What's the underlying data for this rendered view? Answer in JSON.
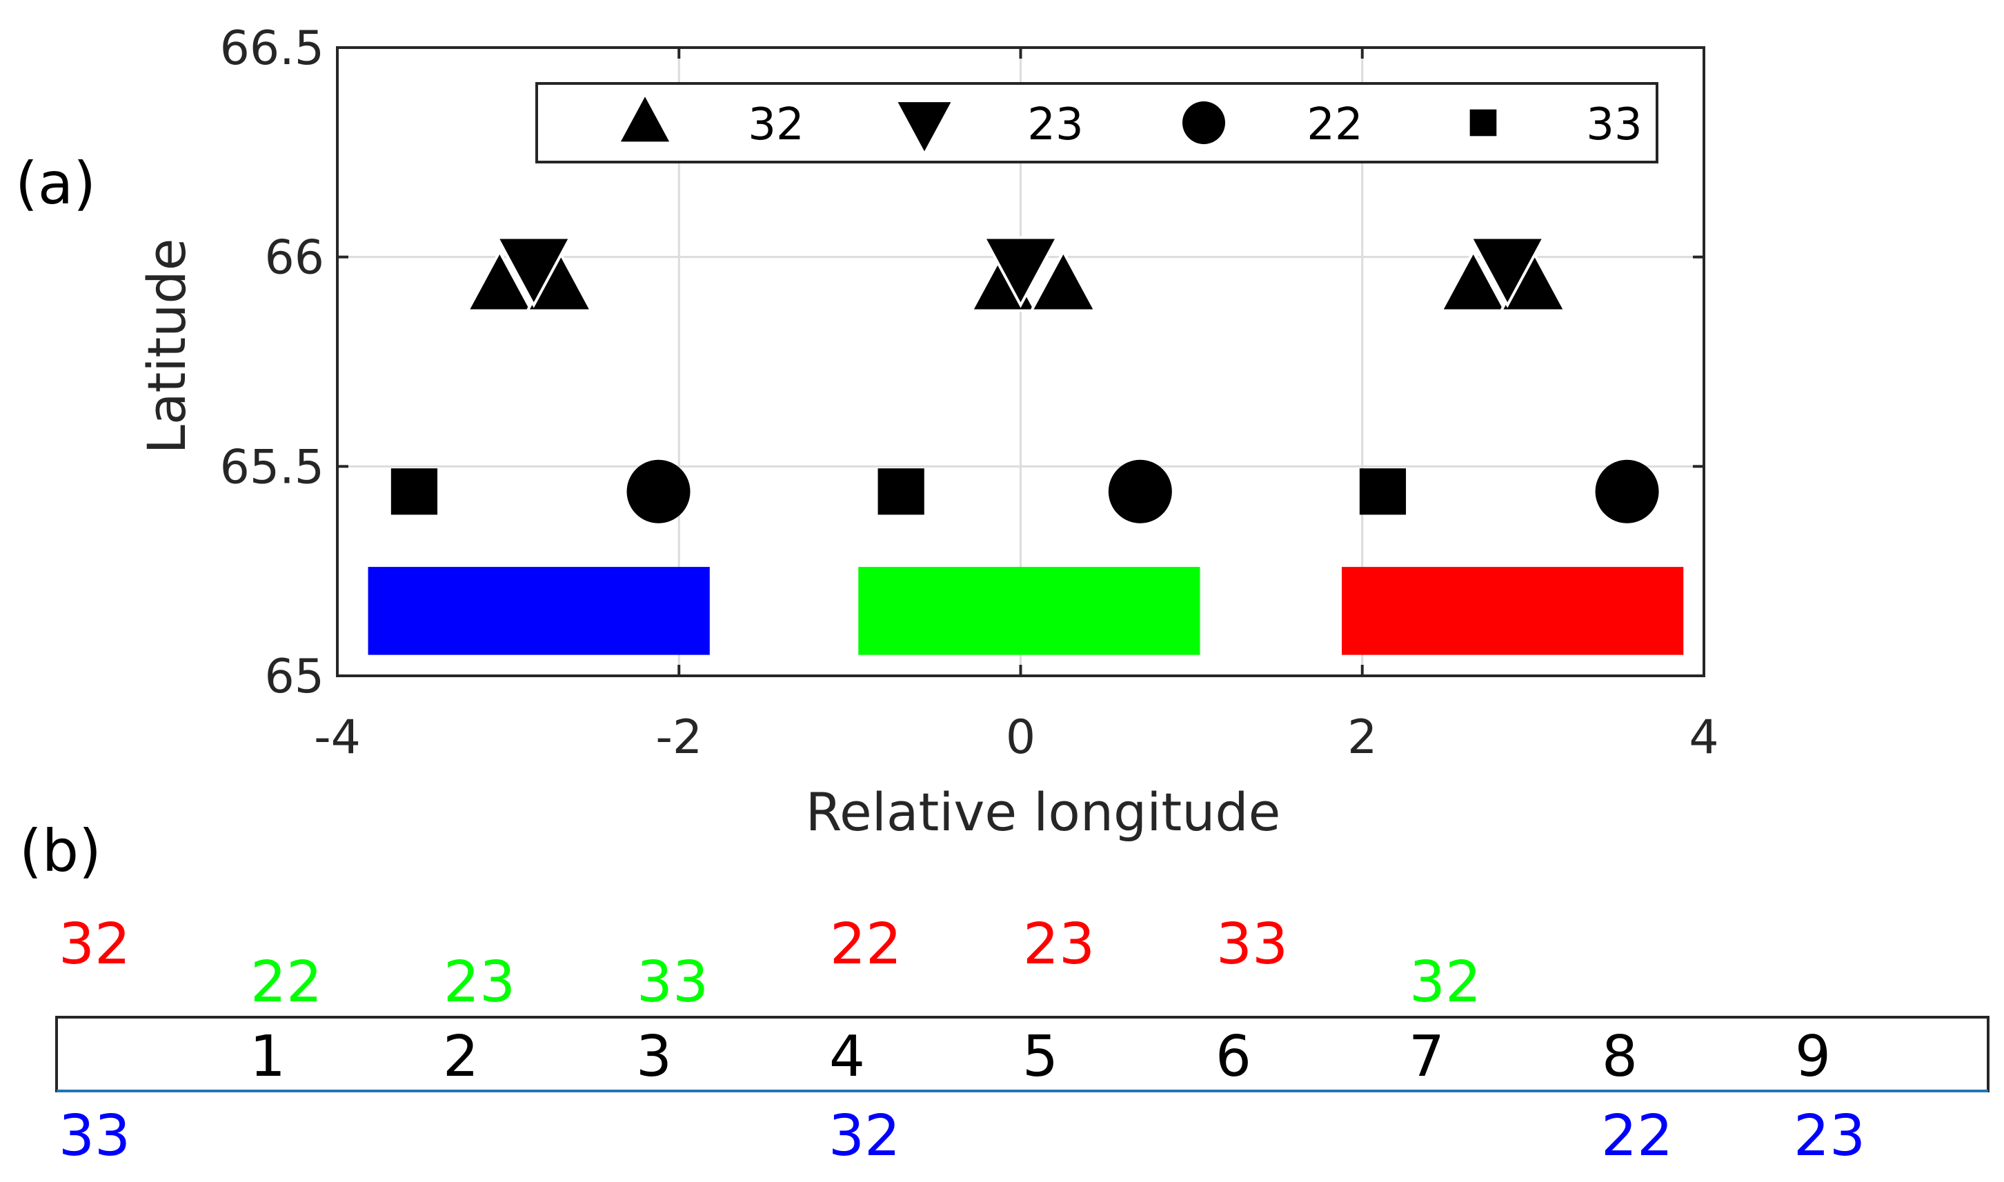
{
  "panel_a": {
    "label": "(a)",
    "chart_data": {
      "type": "scatter",
      "xlabel": "Relative longitude",
      "ylabel": "Latitude",
      "xlim": [
        -4,
        4
      ],
      "ylim": [
        65,
        66.5
      ],
      "xticks": [
        -4,
        -2,
        0,
        2,
        4
      ],
      "xtick_labels": [
        "-4",
        "-2",
        "0",
        "2",
        "4"
      ],
      "yticks": [
        65,
        65.5,
        66,
        66.5
      ],
      "ytick_labels": [
        "65",
        "65.5",
        "66",
        "66.5"
      ],
      "grid": true,
      "legend_position": "top",
      "series": [
        {
          "name": "32",
          "marker": "triangle-up",
          "points": [
            {
              "x": -3.05,
              "y": 65.93
            },
            {
              "x": -2.7,
              "y": 65.93
            },
            {
              "x": -0.1,
              "y": 65.93
            },
            {
              "x": 0.25,
              "y": 65.93
            },
            {
              "x": 2.65,
              "y": 65.93
            },
            {
              "x": 3.0,
              "y": 65.93
            }
          ]
        },
        {
          "name": "23",
          "marker": "triangle-down",
          "points": [
            {
              "x": -2.85,
              "y": 65.98
            },
            {
              "x": 0.0,
              "y": 65.98
            },
            {
              "x": 2.85,
              "y": 65.98
            }
          ]
        },
        {
          "name": "22",
          "marker": "circle",
          "points": [
            {
              "x": -2.12,
              "y": 65.44
            },
            {
              "x": 0.7,
              "y": 65.44
            },
            {
              "x": 3.55,
              "y": 65.44
            }
          ]
        },
        {
          "name": "33",
          "marker": "square",
          "points": [
            {
              "x": -3.55,
              "y": 65.44
            },
            {
              "x": -0.7,
              "y": 65.44
            },
            {
              "x": 2.12,
              "y": 65.44
            }
          ]
        }
      ],
      "bars": [
        {
          "color": "#0000ff",
          "x0": -3.82,
          "x1": -1.82,
          "y0": 65.05,
          "y1": 65.26
        },
        {
          "color": "#00ff00",
          "x0": -0.95,
          "x1": 1.05,
          "y0": 65.05,
          "y1": 65.26
        },
        {
          "color": "#ff0000",
          "x0": 1.88,
          "x1": 3.88,
          "y0": 65.05,
          "y1": 65.26
        }
      ]
    }
  },
  "panel_b": {
    "label": "(b)",
    "cells": [
      "",
      "1",
      "2",
      "3",
      "4",
      "5",
      "6",
      "7",
      "8",
      "9"
    ],
    "above": [
      {
        "cell": 0,
        "text": "32",
        "color": "#ff0000",
        "row": "high"
      },
      {
        "cell": 1,
        "text": "22",
        "color": "#00ff00",
        "row": "low"
      },
      {
        "cell": 2,
        "text": "23",
        "color": "#00ff00",
        "row": "low"
      },
      {
        "cell": 3,
        "text": "33",
        "color": "#00ff00",
        "row": "low"
      },
      {
        "cell": 4,
        "text": "22",
        "color": "#ff0000",
        "row": "high"
      },
      {
        "cell": 5,
        "text": "23",
        "color": "#ff0000",
        "row": "high"
      },
      {
        "cell": 6,
        "text": "33",
        "color": "#ff0000",
        "row": "high"
      },
      {
        "cell": 7,
        "text": "32",
        "color": "#00ff00",
        "row": "low"
      }
    ],
    "below": [
      {
        "cell": 0,
        "text": "33",
        "color": "#0000ff"
      },
      {
        "cell": 4,
        "text": "32",
        "color": "#0000ff"
      },
      {
        "cell": 8,
        "text": "22",
        "color": "#0000ff"
      },
      {
        "cell": 9,
        "text": "23",
        "color": "#0000ff"
      }
    ],
    "underline_color": "#1f77b4"
  }
}
